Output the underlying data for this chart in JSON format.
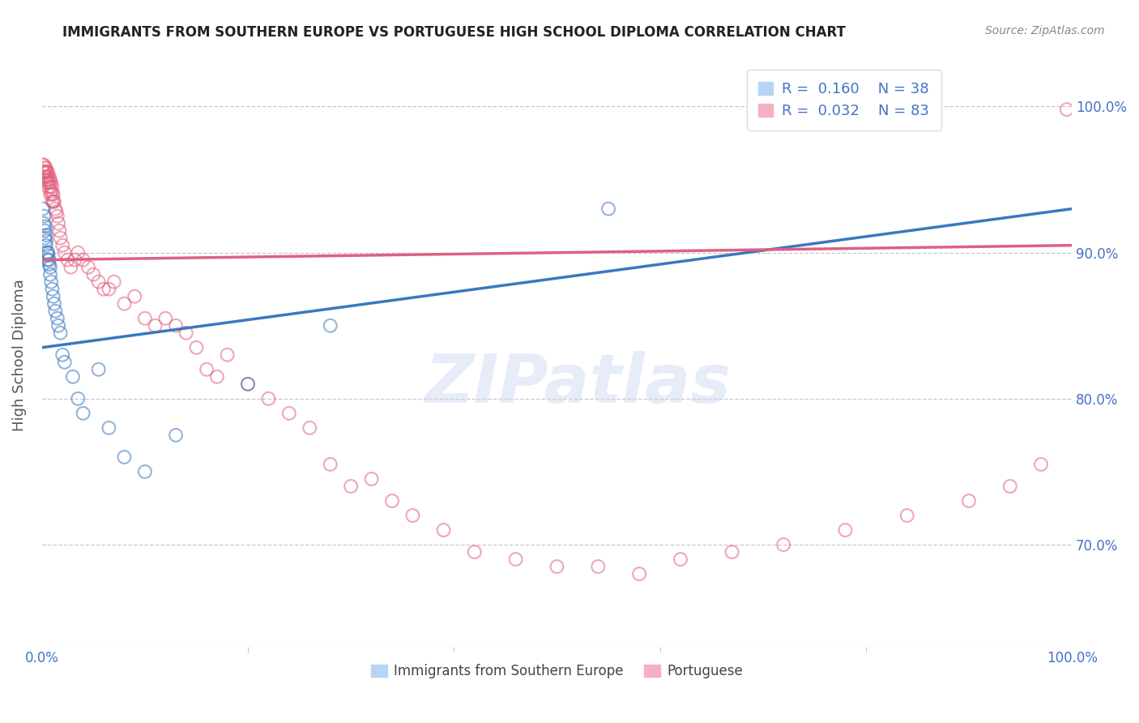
{
  "title": "IMMIGRANTS FROM SOUTHERN EUROPE VS PORTUGUESE HIGH SCHOOL DIPLOMA CORRELATION CHART",
  "source": "Source: ZipAtlas.com",
  "xlabel": "",
  "ylabel": "High School Diploma",
  "xlim": [
    0.0,
    1.0
  ],
  "ylim": [
    0.63,
    1.03
  ],
  "x_tick_labels": [
    "0.0%",
    "100.0%"
  ],
  "x_tick_positions": [
    0.0,
    1.0
  ],
  "y_tick_labels": [
    "70.0%",
    "80.0%",
    "90.0%",
    "100.0%"
  ],
  "y_tick_positions": [
    0.7,
    0.8,
    0.9,
    1.0
  ],
  "legend_entries": [
    {
      "color": "#a8c8f0",
      "label": "Immigrants from Southern Europe",
      "R": "0.160",
      "N": "38"
    },
    {
      "color": "#f4a0b8",
      "label": "Portuguese",
      "R": "0.032",
      "N": "83"
    }
  ],
  "watermark": "ZIPatlas",
  "blue_scatter_x": [
    0.001,
    0.002,
    0.002,
    0.003,
    0.003,
    0.003,
    0.004,
    0.004,
    0.004,
    0.005,
    0.005,
    0.006,
    0.006,
    0.007,
    0.007,
    0.008,
    0.008,
    0.009,
    0.01,
    0.011,
    0.012,
    0.013,
    0.015,
    0.016,
    0.018,
    0.02,
    0.022,
    0.03,
    0.035,
    0.04,
    0.055,
    0.065,
    0.08,
    0.1,
    0.13,
    0.2,
    0.28,
    0.55
  ],
  "blue_scatter_y": [
    0.93,
    0.925,
    0.92,
    0.918,
    0.915,
    0.91,
    0.912,
    0.908,
    0.905,
    0.9,
    0.895,
    0.9,
    0.898,
    0.892,
    0.895,
    0.89,
    0.885,
    0.88,
    0.875,
    0.87,
    0.865,
    0.86,
    0.855,
    0.85,
    0.845,
    0.83,
    0.825,
    0.815,
    0.8,
    0.79,
    0.82,
    0.78,
    0.76,
    0.75,
    0.775,
    0.81,
    0.85,
    0.93
  ],
  "pink_scatter_x": [
    0.001,
    0.001,
    0.002,
    0.002,
    0.003,
    0.003,
    0.003,
    0.004,
    0.004,
    0.004,
    0.005,
    0.005,
    0.005,
    0.006,
    0.006,
    0.006,
    0.007,
    0.007,
    0.008,
    0.008,
    0.008,
    0.009,
    0.009,
    0.01,
    0.01,
    0.01,
    0.011,
    0.011,
    0.012,
    0.013,
    0.014,
    0.015,
    0.016,
    0.017,
    0.018,
    0.02,
    0.022,
    0.025,
    0.028,
    0.032,
    0.035,
    0.04,
    0.045,
    0.05,
    0.055,
    0.06,
    0.065,
    0.07,
    0.08,
    0.09,
    0.1,
    0.11,
    0.12,
    0.13,
    0.14,
    0.15,
    0.16,
    0.17,
    0.18,
    0.2,
    0.22,
    0.24,
    0.26,
    0.28,
    0.3,
    0.32,
    0.34,
    0.36,
    0.39,
    0.42,
    0.46,
    0.5,
    0.54,
    0.58,
    0.62,
    0.67,
    0.72,
    0.78,
    0.84,
    0.9,
    0.94,
    0.97,
    0.995
  ],
  "pink_scatter_y": [
    0.96,
    0.955,
    0.96,
    0.955,
    0.958,
    0.956,
    0.952,
    0.958,
    0.955,
    0.95,
    0.955,
    0.952,
    0.948,
    0.955,
    0.95,
    0.945,
    0.952,
    0.948,
    0.95,
    0.945,
    0.94,
    0.948,
    0.942,
    0.945,
    0.94,
    0.935,
    0.94,
    0.935,
    0.935,
    0.93,
    0.928,
    0.925,
    0.92,
    0.915,
    0.91,
    0.905,
    0.9,
    0.895,
    0.89,
    0.895,
    0.9,
    0.895,
    0.89,
    0.885,
    0.88,
    0.875,
    0.875,
    0.88,
    0.865,
    0.87,
    0.855,
    0.85,
    0.855,
    0.85,
    0.845,
    0.835,
    0.82,
    0.815,
    0.83,
    0.81,
    0.8,
    0.79,
    0.78,
    0.755,
    0.74,
    0.745,
    0.73,
    0.72,
    0.71,
    0.695,
    0.69,
    0.685,
    0.685,
    0.68,
    0.69,
    0.695,
    0.7,
    0.71,
    0.72,
    0.73,
    0.74,
    0.755,
    0.998
  ],
  "blue_line_start_y": 0.835,
  "blue_line_end_y": 0.93,
  "pink_line_start_y": 0.895,
  "pink_line_end_y": 0.905,
  "blue_line_color": "#3a78bf",
  "pink_line_color": "#e06080",
  "grid_color": "#c8c8c8",
  "background_color": "#ffffff",
  "title_color": "#222222",
  "axis_label_color": "#555555",
  "right_label_color": "#4472c4",
  "source_color": "#888888"
}
